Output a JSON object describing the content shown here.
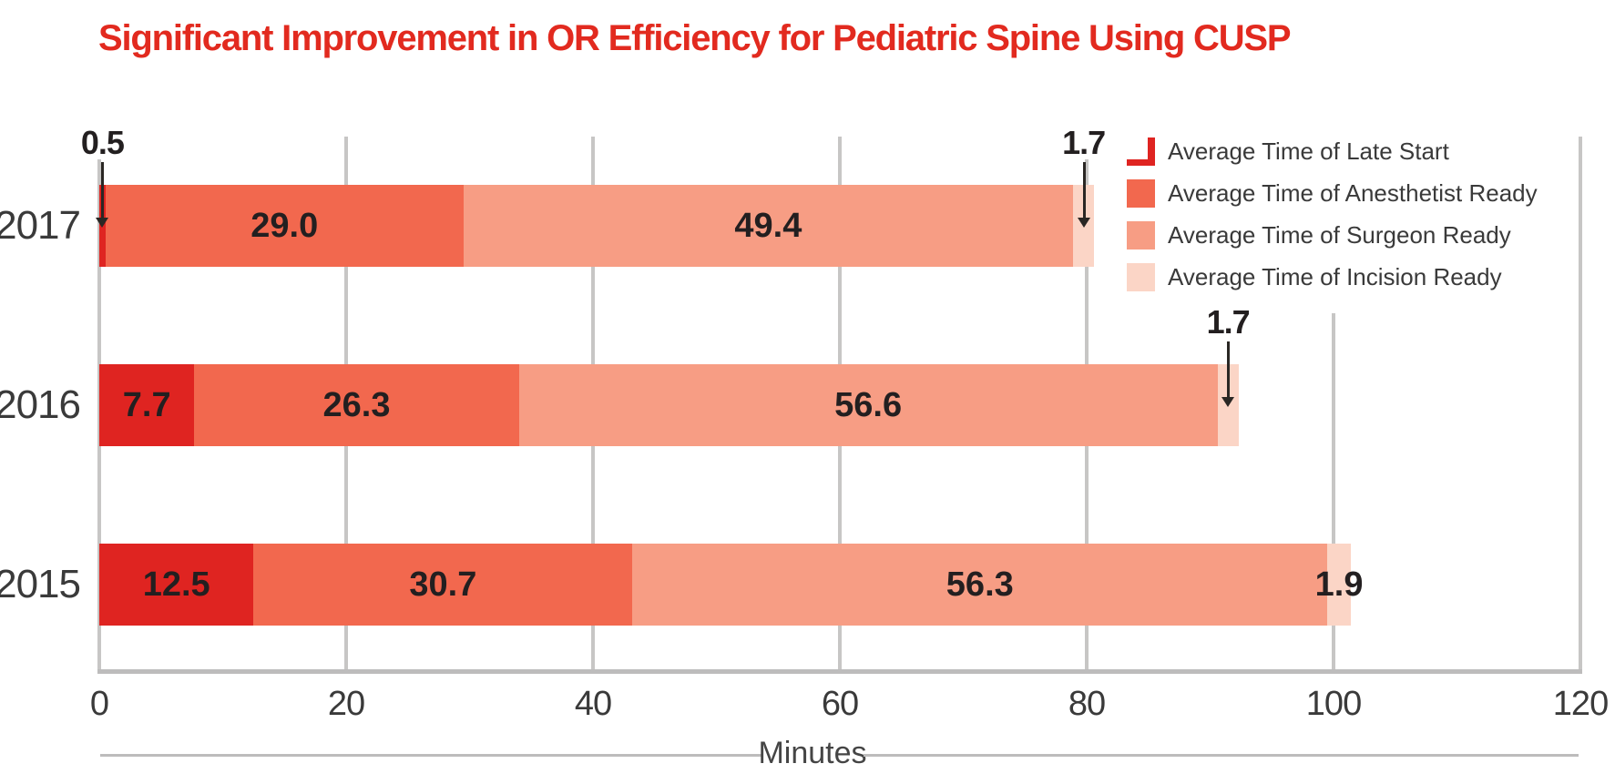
{
  "title": {
    "text": "Significant Improvement in OR Efficiency for Pediatric Spine Using CUSP",
    "color": "#e22a1f"
  },
  "chart_data": {
    "type": "bar",
    "orientation": "horizontal",
    "stacked": true,
    "title": "Significant Improvement in OR Efficiency for Pediatric Spine Using CUSP",
    "xlabel": "Minutes",
    "xlim": [
      0,
      120
    ],
    "x_ticks": [
      0,
      20,
      40,
      60,
      80,
      100,
      120
    ],
    "grid": true,
    "legend_position": "top-right",
    "categories": [
      "2017",
      "2016",
      "2015"
    ],
    "series": [
      {
        "name": "Average Time of Late Start",
        "color": "#df2421",
        "values": [
          0.5,
          7.7,
          12.5
        ]
      },
      {
        "name": "Average Time of Anesthetist Ready",
        "color": "#f2684e",
        "values": [
          29.0,
          26.3,
          30.7
        ]
      },
      {
        "name": "Average Time of Surgeon Ready",
        "color": "#f79d84",
        "values": [
          49.4,
          56.6,
          56.3
        ]
      },
      {
        "name": "Average Time of Incision Ready",
        "color": "#fbd5c6",
        "values": [
          1.7,
          1.7,
          1.9
        ]
      }
    ],
    "row_totals": [
      80.6,
      92.3,
      101.4
    ],
    "labels": [
      [
        "0.5",
        "29.0",
        "49.4",
        "1.7"
      ],
      [
        "7.7",
        "26.3",
        "56.6",
        "1.7"
      ],
      [
        "12.5",
        "30.7",
        "56.3",
        "1.9"
      ]
    ],
    "label_placement": [
      [
        "arrow",
        "inside",
        "inside",
        "arrow"
      ],
      [
        "inside",
        "inside",
        "inside",
        "arrow"
      ],
      [
        "inside",
        "inside",
        "inside",
        "inside"
      ]
    ]
  },
  "colors": {
    "grid": "#c7c6c5",
    "axis": "#bdbcbc",
    "tick_text": "#3a3a3a",
    "value_text": "#231f20",
    "arrow": "#2a2724",
    "legend_text": "#3a3a3a"
  }
}
